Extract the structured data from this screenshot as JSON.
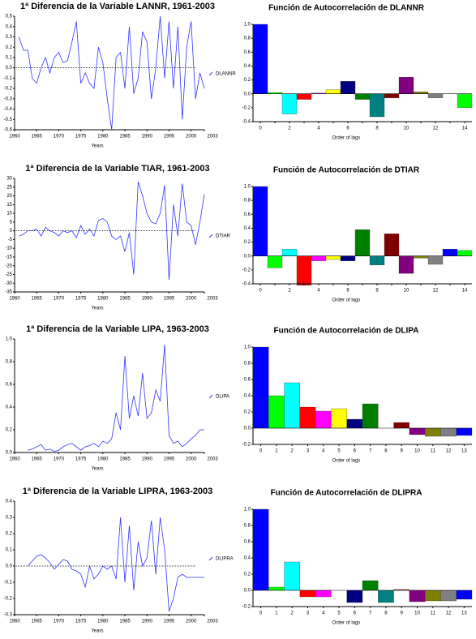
{
  "chart_data": [
    {
      "type": "line",
      "title": "1ª Diferencia de la Variable LANNR, 1961-2003",
      "x_label": "Years",
      "x": [
        1961,
        1962,
        1963,
        1964,
        1965,
        1966,
        1967,
        1968,
        1969,
        1970,
        1971,
        1972,
        1973,
        1974,
        1975,
        1976,
        1977,
        1978,
        1979,
        1980,
        1981,
        1982,
        1983,
        1984,
        1985,
        1986,
        1987,
        1988,
        1989,
        1990,
        1991,
        1992,
        1993,
        1994,
        1995,
        1996,
        1997,
        1998,
        1999,
        2000,
        2001,
        2002,
        2003
      ],
      "series": [
        {
          "name": "DLANNR",
          "color": "#3333ff",
          "values": [
            0.3,
            0.17,
            0.17,
            -0.1,
            -0.15,
            0.0,
            0.1,
            -0.05,
            0.1,
            0.15,
            0.05,
            0.07,
            0.25,
            0.45,
            -0.15,
            -0.05,
            -0.15,
            -0.2,
            0.2,
            0.05,
            -0.3,
            -0.6,
            0.1,
            0.15,
            -0.2,
            0.4,
            -0.25,
            -0.1,
            0.35,
            0.25,
            -0.3,
            0.0,
            0.5,
            -0.1,
            0.45,
            -0.2,
            0.4,
            -0.5,
            0.2,
            0.45,
            -0.3,
            -0.05,
            -0.2
          ]
        }
      ],
      "xlim": [
        1960,
        2003
      ],
      "xticks": [
        1960,
        1965,
        1970,
        1975,
        1980,
        1985,
        1990,
        1995,
        2000,
        2003
      ],
      "ylim": [
        -0.6,
        0.5
      ],
      "yticks": [
        0.5,
        0.4,
        0.3,
        0.2,
        0.1,
        {
          "value": 0,
          "label": "0.0"
        },
        -0.1,
        -0.2,
        -0.3,
        -0.4,
        -0.5,
        -0.6
      ]
    },
    {
      "type": "bar",
      "title": "Función de Autocorrelación de DLANNR",
      "x_label": "Order of lags",
      "categories": [
        "0",
        null,
        "2",
        null,
        "4",
        null,
        "6",
        null,
        "8",
        null,
        "10",
        null,
        "12",
        null,
        "14"
      ],
      "values": [
        1.0,
        0.02,
        -0.29,
        -0.08,
        0.01,
        0.06,
        0.18,
        -0.08,
        -0.33,
        -0.06,
        0.24,
        0.03,
        -0.06,
        0.0,
        -0.2
      ],
      "colors": [
        "#0000ff",
        "#00ff00",
        "#00ffff",
        "#ff0000",
        "#ff00ff",
        "#ffff00",
        "#000080",
        "#008000",
        "#008080",
        "#800000",
        "#800080",
        "#808000",
        "#808080",
        "#0000ff",
        "#00ff00"
      ],
      "ylim": [
        -0.4,
        1.0
      ],
      "yticks": [
        {
          "value": 1,
          "label": "1.0"
        },
        0.8,
        0.6,
        0.4,
        0.2,
        {
          "value": 0,
          "label": "0.0"
        },
        -0.2,
        -0.4
      ]
    },
    {
      "type": "line",
      "title": "1ª Diferencia de la Variable TIAR, 1961-2003",
      "x_label": "Years",
      "x": [
        1961,
        1962,
        1963,
        1964,
        1965,
        1966,
        1967,
        1968,
        1969,
        1970,
        1971,
        1972,
        1973,
        1974,
        1975,
        1976,
        1977,
        1978,
        1979,
        1980,
        1981,
        1982,
        1983,
        1984,
        1985,
        1986,
        1987,
        1988,
        1989,
        1990,
        1991,
        1992,
        1993,
        1994,
        1995,
        1996,
        1997,
        1998,
        1999,
        2000,
        2001,
        2002,
        2003
      ],
      "series": [
        {
          "name": "DTIAR",
          "color": "#3333ff",
          "values": [
            -3,
            -2,
            0,
            0,
            1,
            -3,
            2,
            0,
            -1,
            -3,
            0,
            -1,
            0,
            -4,
            3,
            -2,
            1,
            -3,
            6,
            7,
            5,
            -3,
            -5,
            -3,
            -12,
            -1,
            -25,
            28,
            20,
            10,
            5,
            4,
            10,
            26,
            -28,
            15,
            -3,
            27,
            5,
            3,
            -8,
            5,
            21
          ]
        }
      ],
      "xlim": [
        1960,
        2003
      ],
      "xticks": [
        1960,
        1965,
        1970,
        1975,
        1980,
        1985,
        1990,
        1995,
        2000,
        2003
      ],
      "ylim": [
        -35,
        30
      ],
      "yticks": [
        30,
        25,
        20,
        15,
        10,
        5,
        0,
        -5,
        -10,
        -15,
        -20,
        -25,
        -30,
        -35
      ]
    },
    {
      "type": "bar",
      "title": "Función de Autocorrelación de DTIAR",
      "x_label": "Order of lags",
      "categories": [
        "0",
        null,
        "2",
        null,
        "4",
        null,
        "6",
        null,
        "8",
        null,
        "10",
        null,
        "12",
        null,
        "14"
      ],
      "values": [
        1.0,
        -0.17,
        0.1,
        -0.42,
        -0.07,
        -0.05,
        -0.07,
        0.38,
        -0.13,
        0.32,
        -0.25,
        -0.03,
        -0.12,
        0.1,
        0.08
      ],
      "colors": [
        "#0000ff",
        "#00ff00",
        "#00ffff",
        "#ff0000",
        "#ff00ff",
        "#ffff00",
        "#000080",
        "#008000",
        "#008080",
        "#800000",
        "#800080",
        "#808000",
        "#808080",
        "#0000ff",
        "#00ff00"
      ],
      "ylim": [
        -0.4,
        1.0
      ],
      "yticks": [
        {
          "value": 1,
          "label": "1.0"
        },
        0.8,
        0.6,
        0.4,
        0.2,
        {
          "value": 0,
          "label": "0.0"
        },
        -0.2,
        -0.4
      ]
    },
    {
      "type": "line",
      "title": "1ª Diferencia de la Variable LIPA, 1963-2003",
      "x_label": "Years",
      "x": [
        1963,
        1964,
        1965,
        1966,
        1967,
        1968,
        1969,
        1970,
        1971,
        1972,
        1973,
        1974,
        1975,
        1976,
        1977,
        1978,
        1979,
        1980,
        1981,
        1982,
        1983,
        1984,
        1985,
        1986,
        1987,
        1988,
        1989,
        1990,
        1991,
        1992,
        1993,
        1994,
        1995,
        1996,
        1997,
        1998,
        1999,
        2000,
        2001,
        2002,
        2003
      ],
      "series": [
        {
          "name": "DLIPA",
          "color": "#3333ff",
          "values": [
            0.02,
            0.03,
            0.05,
            0.07,
            0.02,
            0.03,
            0.01,
            0.02,
            0.05,
            0.07,
            0.08,
            0.05,
            0.02,
            0.05,
            0.06,
            0.08,
            0.05,
            0.1,
            0.08,
            0.12,
            0.35,
            0.2,
            0.85,
            0.3,
            0.5,
            0.32,
            0.7,
            0.3,
            0.35,
            0.55,
            0.45,
            0.95,
            0.15,
            0.08,
            0.1,
            0.05,
            0.08,
            0.12,
            0.15,
            0.2,
            0.2
          ]
        }
      ],
      "xlim": [
        1960,
        2003
      ],
      "xticks": [
        1960,
        1965,
        1970,
        1975,
        1980,
        1985,
        1990,
        1995,
        2000,
        2003
      ],
      "ylim": [
        0,
        1.0
      ],
      "yticks": [
        {
          "value": 1,
          "label": "1.0"
        },
        0.8,
        0.6,
        0.4,
        0.2,
        {
          "value": 0,
          "label": "0.0"
        }
      ]
    },
    {
      "type": "bar",
      "title": "Función de Autocorrelación de DLIPA",
      "x_label": "Order of lags",
      "categories": [
        "0",
        "1",
        "2",
        "3",
        "4",
        "5",
        "6",
        "7",
        "8",
        "9",
        "10",
        "11",
        "12",
        "13"
      ],
      "values": [
        1.0,
        0.4,
        0.56,
        0.26,
        0.21,
        0.24,
        0.11,
        0.3,
        0.0,
        0.07,
        -0.08,
        -0.1,
        -0.1,
        -0.09
      ],
      "colors": [
        "#0000ff",
        "#00ff00",
        "#00ffff",
        "#ff0000",
        "#ff00ff",
        "#ffff00",
        "#000080",
        "#008000",
        "#008080",
        "#800000",
        "#800080",
        "#808000",
        "#808080",
        "#0000ff"
      ],
      "ylim": [
        -0.2,
        1.0
      ],
      "yticks": [
        {
          "value": 1,
          "label": "1.0"
        },
        0.8,
        0.6,
        0.4,
        0.2,
        {
          "value": 0,
          "label": "0.0"
        },
        -0.2
      ]
    },
    {
      "type": "line",
      "title": "1ª Diferencia de la Variable LIPRA, 1963-2003",
      "x_label": "Years",
      "x": [
        1963,
        1964,
        1965,
        1966,
        1967,
        1968,
        1969,
        1970,
        1971,
        1972,
        1973,
        1974,
        1975,
        1976,
        1977,
        1978,
        1979,
        1980,
        1981,
        1982,
        1983,
        1984,
        1985,
        1986,
        1987,
        1988,
        1989,
        1990,
        1991,
        1992,
        1993,
        1994,
        1995,
        1996,
        1997,
        1998,
        1999,
        2000,
        2001,
        2002,
        2003
      ],
      "series": [
        {
          "name": "DLIPRA",
          "color": "#3333ff",
          "values": [
            0.0,
            0.03,
            0.06,
            0.07,
            0.05,
            0.02,
            -0.02,
            0.01,
            0.04,
            0.03,
            -0.02,
            -0.03,
            -0.05,
            -0.13,
            0.0,
            -0.08,
            -0.05,
            0.0,
            -0.02,
            0.0,
            -0.08,
            0.3,
            -0.1,
            0.25,
            -0.15,
            0.15,
            0.0,
            0.05,
            0.28,
            -0.05,
            0.3,
            0.1,
            -0.28,
            -0.2,
            -0.07,
            -0.05,
            -0.07,
            -0.07,
            -0.07,
            -0.07,
            -0.07
          ]
        }
      ],
      "xlim": [
        1960,
        2003
      ],
      "xticks": [
        1960,
        1965,
        1970,
        1975,
        1980,
        1985,
        1990,
        1995,
        2000,
        2003
      ],
      "ylim": [
        -0.3,
        0.4
      ],
      "yticks": [
        0.4,
        0.3,
        0.2,
        0.1,
        {
          "value": 0,
          "label": "0.0"
        },
        -0.1,
        -0.2,
        -0.3
      ]
    },
    {
      "type": "bar",
      "title": "Función de Autocorrelación de DLIPRA",
      "x_label": "Order of lags",
      "categories": [
        "0",
        "1",
        "2",
        "3",
        "4",
        "5",
        "6",
        "7",
        "8",
        "9",
        "10",
        "11",
        "12",
        "13"
      ],
      "values": [
        1.0,
        0.04,
        0.35,
        -0.08,
        -0.08,
        0.0,
        -0.15,
        0.12,
        -0.15,
        0.01,
        -0.14,
        -0.13,
        -0.13,
        -0.11
      ],
      "colors": [
        "#0000ff",
        "#00ff00",
        "#00ffff",
        "#ff0000",
        "#ff00ff",
        "#ffff00",
        "#000080",
        "#008000",
        "#008080",
        "#800000",
        "#800080",
        "#808000",
        "#808080",
        "#0000ff"
      ],
      "ylim": [
        -0.2,
        1.0
      ],
      "yticks": [
        {
          "value": 1,
          "label": "1.0"
        },
        0.8,
        0.6,
        0.4,
        0.2,
        {
          "value": 0,
          "label": "0.0"
        },
        -0.2
      ]
    }
  ]
}
